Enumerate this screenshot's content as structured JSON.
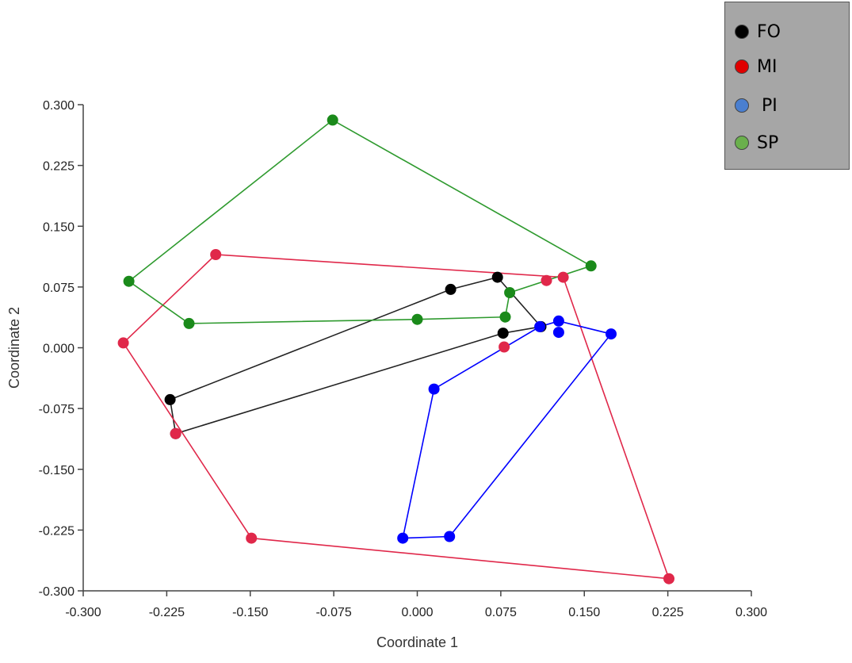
{
  "chart_data": {
    "type": "scatter",
    "xlabel": "Coordinate 1",
    "ylabel": "Coordinate 2",
    "xlim": [
      -0.3,
      0.3
    ],
    "ylim": [
      -0.3,
      0.3
    ],
    "x_ticks": [
      "-0.300",
      "-0.225",
      "-0.150",
      "-0.075",
      "0.000",
      "0.075",
      "0.150",
      "0.225",
      "0.300"
    ],
    "y_ticks": [
      "0.300",
      "0.225",
      "0.150",
      "0.075",
      "0.000",
      "-0.075",
      "-0.150",
      "-0.225",
      "-0.300"
    ],
    "grid": false,
    "legend_position": "top-right",
    "series": [
      {
        "name": "FO",
        "line_color": "#222222",
        "point_color": "#000000",
        "legend_color": "#000000",
        "hull": [
          [
            -0.222,
            -0.064
          ],
          [
            0.03,
            0.072
          ],
          [
            0.072,
            0.087
          ],
          [
            0.111,
            0.026
          ],
          [
            0.077,
            0.018
          ],
          [
            -0.217,
            -0.106
          ]
        ],
        "points": [
          [
            -0.222,
            -0.064
          ],
          [
            0.03,
            0.072
          ],
          [
            0.072,
            0.087
          ],
          [
            0.111,
            0.026
          ],
          [
            0.077,
            0.018
          ],
          [
            -0.217,
            -0.106
          ]
        ]
      },
      {
        "name": "MI",
        "line_color": "#e0284a",
        "point_color": "#e0284a",
        "legend_color": "#e00000",
        "hull": [
          [
            -0.264,
            0.006
          ],
          [
            -0.181,
            0.115
          ],
          [
            0.131,
            0.087
          ],
          [
            0.226,
            -0.285
          ],
          [
            -0.149,
            -0.235
          ]
        ],
        "points": [
          [
            -0.264,
            0.006
          ],
          [
            -0.181,
            0.115
          ],
          [
            0.131,
            0.087
          ],
          [
            0.226,
            -0.285
          ],
          [
            -0.149,
            -0.235
          ],
          [
            0.116,
            0.083
          ],
          [
            0.078,
            0.001
          ],
          [
            -0.217,
            -0.106
          ]
        ]
      },
      {
        "name": "PI",
        "line_color": "#0000ff",
        "point_color": "#0000ff",
        "legend_color": "#4a7fd0",
        "hull": [
          [
            0.015,
            -0.051
          ],
          [
            0.11,
            0.026
          ],
          [
            0.127,
            0.033
          ],
          [
            0.174,
            0.017
          ],
          [
            0.029,
            -0.233
          ],
          [
            -0.013,
            -0.235
          ]
        ],
        "points": [
          [
            0.015,
            -0.051
          ],
          [
            0.11,
            0.026
          ],
          [
            0.127,
            0.033
          ],
          [
            0.174,
            0.017
          ],
          [
            0.029,
            -0.233
          ],
          [
            -0.013,
            -0.235
          ],
          [
            0.127,
            0.019
          ]
        ]
      },
      {
        "name": "SP",
        "line_color": "#2e9a2e",
        "point_color": "#1a8a1a",
        "legend_color": "#6ab04c",
        "hull": [
          [
            -0.259,
            0.082
          ],
          [
            -0.076,
            0.281
          ],
          [
            0.156,
            0.101
          ],
          [
            0.083,
            0.068
          ],
          [
            0.079,
            0.038
          ],
          [
            0.0,
            0.035
          ],
          [
            -0.205,
            0.03
          ]
        ],
        "points": [
          [
            -0.259,
            0.082
          ],
          [
            -0.076,
            0.281
          ],
          [
            0.156,
            0.101
          ],
          [
            0.083,
            0.068
          ],
          [
            0.079,
            0.038
          ],
          [
            0.0,
            0.035
          ],
          [
            -0.205,
            0.03
          ]
        ]
      }
    ]
  }
}
